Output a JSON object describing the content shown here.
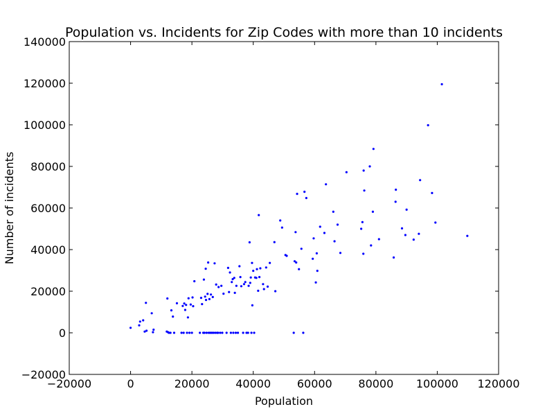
{
  "chart_data": {
    "type": "scatter",
    "title": "Population vs. Incidents for Zip Codes with more than 10 incidents",
    "xlabel": "Population",
    "ylabel": "Number of incidents",
    "xlim": [
      -20000,
      120000
    ],
    "ylim": [
      -20000,
      140000
    ],
    "xticks": [
      "−20000",
      "0",
      "20000",
      "40000",
      "60000",
      "80000",
      "100000",
      "120000"
    ],
    "yticks": [
      "−20000",
      "0",
      "20000",
      "40000",
      "60000",
      "80000",
      "100000",
      "120000",
      "140000"
    ],
    "grid": false,
    "marker_color": "#0000ff",
    "series": [
      {
        "points": [
          [
            0,
            2400
          ],
          [
            2800,
            3600
          ],
          [
            3100,
            5400
          ],
          [
            4100,
            6000
          ],
          [
            4600,
            600
          ],
          [
            5000,
            14400
          ],
          [
            5200,
            1000
          ],
          [
            6900,
            9400
          ],
          [
            7300,
            300
          ],
          [
            7500,
            1500
          ],
          [
            11800,
            600
          ],
          [
            12000,
            16500
          ],
          [
            12200,
            300
          ],
          [
            12500,
            0
          ],
          [
            13000,
            0
          ],
          [
            13300,
            10800
          ],
          [
            13800,
            7800
          ],
          [
            14200,
            0
          ],
          [
            15100,
            14200
          ],
          [
            16600,
            0
          ],
          [
            17000,
            12900
          ],
          [
            17300,
            0
          ],
          [
            17500,
            14100
          ],
          [
            17800,
            11000
          ],
          [
            18100,
            13400
          ],
          [
            18400,
            0
          ],
          [
            18700,
            7400
          ],
          [
            18900,
            16600
          ],
          [
            19200,
            0
          ],
          [
            19600,
            13600
          ],
          [
            20000,
            0
          ],
          [
            20200,
            17000
          ],
          [
            20400,
            12800
          ],
          [
            20800,
            24800
          ],
          [
            22600,
            0
          ],
          [
            23000,
            16800
          ],
          [
            23300,
            13800
          ],
          [
            23700,
            0
          ],
          [
            23900,
            25600
          ],
          [
            24100,
            0
          ],
          [
            24300,
            17400
          ],
          [
            24500,
            30800
          ],
          [
            24600,
            15800
          ],
          [
            24800,
            0
          ],
          [
            25100,
            18700
          ],
          [
            25300,
            33800
          ],
          [
            25500,
            0
          ],
          [
            25700,
            16200
          ],
          [
            26000,
            0
          ],
          [
            26200,
            18400
          ],
          [
            26500,
            0
          ],
          [
            26800,
            17200
          ],
          [
            27000,
            0
          ],
          [
            27400,
            33400
          ],
          [
            27600,
            0
          ],
          [
            27900,
            23200
          ],
          [
            28200,
            0
          ],
          [
            28500,
            0
          ],
          [
            28700,
            22000
          ],
          [
            29200,
            0
          ],
          [
            29600,
            22600
          ],
          [
            29900,
            0
          ],
          [
            30300,
            18800
          ],
          [
            31300,
            0
          ],
          [
            31800,
            31200
          ],
          [
            32100,
            19600
          ],
          [
            32400,
            29000
          ],
          [
            32700,
            0
          ],
          [
            33000,
            24400
          ],
          [
            33300,
            25800
          ],
          [
            33500,
            0
          ],
          [
            33800,
            26400
          ],
          [
            34000,
            19200
          ],
          [
            34300,
            0
          ],
          [
            34500,
            22600
          ],
          [
            35000,
            0
          ],
          [
            35500,
            32000
          ],
          [
            35800,
            26800
          ],
          [
            36100,
            22400
          ],
          [
            36700,
            0
          ],
          [
            37000,
            23400
          ],
          [
            37400,
            24400
          ],
          [
            37800,
            0
          ],
          [
            38300,
            0
          ],
          [
            38500,
            22600
          ],
          [
            38800,
            43500
          ],
          [
            39000,
            24000
          ],
          [
            39200,
            26600
          ],
          [
            39400,
            0
          ],
          [
            39600,
            33600
          ],
          [
            39700,
            13200
          ],
          [
            40000,
            29800
          ],
          [
            40300,
            0
          ],
          [
            40600,
            26600
          ],
          [
            41000,
            26400
          ],
          [
            41200,
            30600
          ],
          [
            41600,
            20200
          ],
          [
            41800,
            56600
          ],
          [
            42000,
            26800
          ],
          [
            42300,
            31000
          ],
          [
            43200,
            23400
          ],
          [
            43500,
            21000
          ],
          [
            44200,
            31400
          ],
          [
            44700,
            22200
          ],
          [
            45400,
            33600
          ],
          [
            46900,
            43600
          ],
          [
            47200,
            20000
          ],
          [
            48800,
            54000
          ],
          [
            49400,
            50600
          ],
          [
            50500,
            37400
          ],
          [
            50900,
            37000
          ],
          [
            53200,
            0
          ],
          [
            53500,
            34400
          ],
          [
            53800,
            48400
          ],
          [
            54000,
            33800
          ],
          [
            54300,
            66800
          ],
          [
            54900,
            30600
          ],
          [
            55700,
            40400
          ],
          [
            56300,
            0
          ],
          [
            56700,
            67800
          ],
          [
            57300,
            64800
          ],
          [
            59400,
            35600
          ],
          [
            59700,
            45400
          ],
          [
            60400,
            24200
          ],
          [
            60700,
            38200
          ],
          [
            60900,
            29800
          ],
          [
            61800,
            51000
          ],
          [
            63200,
            48000
          ],
          [
            63700,
            71400
          ],
          [
            66100,
            58200
          ],
          [
            66500,
            44000
          ],
          [
            67500,
            52000
          ],
          [
            68400,
            38400
          ],
          [
            70400,
            77200
          ],
          [
            75200,
            50000
          ],
          [
            75600,
            53200
          ],
          [
            75900,
            38000
          ],
          [
            76000,
            78000
          ],
          [
            76200,
            68400
          ],
          [
            78000,
            80000
          ],
          [
            78400,
            42000
          ],
          [
            79000,
            58200
          ],
          [
            79200,
            88400
          ],
          [
            81000,
            45000
          ],
          [
            85800,
            36200
          ],
          [
            86400,
            63000
          ],
          [
            86500,
            68800
          ],
          [
            88500,
            50200
          ],
          [
            89600,
            47000
          ],
          [
            90000,
            59200
          ],
          [
            92300,
            44800
          ],
          [
            94000,
            47600
          ],
          [
            94400,
            73400
          ],
          [
            97000,
            99800
          ],
          [
            98300,
            67200
          ],
          [
            99400,
            53000
          ],
          [
            101500,
            119500
          ],
          [
            109800,
            46600
          ]
        ]
      }
    ]
  }
}
